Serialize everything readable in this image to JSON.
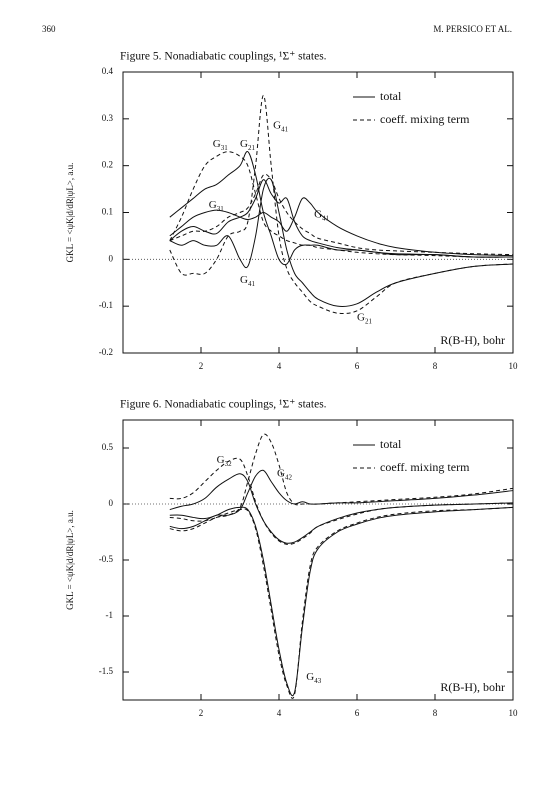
{
  "header": {
    "page": "360",
    "authors": "M. PERSICO ET AL."
  },
  "chart_data": [
    {
      "type": "line",
      "title": "Figure 5. Nonadiabatic couplings, ¹Σ⁺ states.",
      "xlabel": "R(B-H), bohr",
      "ylabel": "GKL = <ψK|d/dR|ψL>, a.u.",
      "xlim": [
        0,
        10
      ],
      "xticks": [
        2,
        4,
        6,
        8,
        10
      ],
      "ylim": [
        -0.2,
        0.4
      ],
      "yticks": [
        0.4,
        0.3,
        0.2,
        0.1,
        0,
        -0.1,
        -0.2
      ],
      "zero_line": true,
      "legend_position": "upper right",
      "color": "#111111",
      "legend": [
        {
          "name": "total",
          "style": "solid"
        },
        {
          "name": "coeff. mixing term",
          "style": "dashed"
        }
      ],
      "x": [
        1.2,
        1.5,
        1.8,
        2.1,
        2.4,
        2.7,
        3.0,
        3.2,
        3.4,
        3.6,
        3.8,
        4.0,
        4.2,
        4.4,
        4.6,
        4.8,
        5.0,
        5.5,
        6.0,
        6.5,
        7,
        8,
        9,
        10
      ],
      "series": [
        {
          "style": "solid",
          "values": [
            0.09,
            0.11,
            0.13,
            0.15,
            0.16,
            0.18,
            0.2,
            0.23,
            0.18,
            0.1,
            0.05,
            0.0,
            -0.01,
            0.02,
            0.03,
            0.03,
            0.03,
            0.02,
            0.02,
            0.015,
            0.01,
            0.01,
            0.005,
            0.005
          ]
        },
        {
          "style": "solid",
          "values": [
            0.05,
            0.07,
            0.09,
            0.1,
            0.105,
            0.1,
            0.09,
            0.085,
            0.09,
            0.1,
            0.09,
            0.08,
            0.06,
            0.09,
            0.13,
            0.12,
            0.1,
            0.07,
            0.05,
            0.035,
            0.025,
            0.015,
            0.01,
            0.008
          ]
        },
        {
          "style": "solid",
          "values": [
            0.04,
            0.03,
            0.04,
            0.03,
            0.03,
            0.05,
            0.0,
            -0.015,
            0.05,
            0.15,
            0.17,
            0.1,
            0.02,
            -0.03,
            -0.05,
            -0.07,
            -0.085,
            -0.1,
            -0.095,
            -0.07,
            -0.05,
            -0.03,
            -0.015,
            -0.01
          ]
        },
        {
          "style": "solid",
          "values": [
            0.04,
            0.06,
            0.07,
            0.06,
            0.055,
            0.08,
            0.09,
            0.1,
            0.13,
            0.17,
            0.14,
            0.12,
            0.13,
            0.08,
            0.05,
            0.04,
            0.035,
            0.025,
            0.02,
            0.015,
            0.012,
            0.01,
            0.005,
            0.005
          ]
        },
        {
          "style": "dashed",
          "values": [
            0.04,
            0.09,
            0.15,
            0.2,
            0.22,
            0.23,
            0.22,
            0.2,
            0.14,
            0.08,
            0.06,
            0.05,
            0.04,
            0.035,
            0.03,
            0.03,
            0.025,
            0.02,
            0.015,
            0.012,
            0.01,
            0.008,
            0.005,
            0.005
          ]
        },
        {
          "style": "dashed",
          "values": [
            0.02,
            -0.03,
            -0.03,
            -0.03,
            0.0,
            0.05,
            0.06,
            0.08,
            0.2,
            0.35,
            0.2,
            0.05,
            -0.02,
            -0.05,
            -0.07,
            -0.09,
            -0.1,
            -0.115,
            -0.11,
            -0.08,
            -0.05,
            -0.03,
            -0.015,
            -0.01
          ]
        },
        {
          "style": "dashed",
          "values": [
            0.04,
            0.05,
            0.06,
            0.06,
            0.07,
            0.09,
            0.1,
            0.11,
            0.14,
            0.18,
            0.17,
            0.13,
            0.1,
            0.08,
            0.065,
            0.055,
            0.045,
            0.035,
            0.025,
            0.02,
            0.018,
            0.015,
            0.012,
            0.01
          ]
        }
      ],
      "annotations": [
        {
          "text": "G",
          "sub": "31",
          "x": 2.3,
          "y": 0.245
        },
        {
          "text": "G",
          "sub": "21",
          "x": 3.0,
          "y": 0.245
        },
        {
          "text": "G",
          "sub": "41",
          "x": 3.85,
          "y": 0.285
        },
        {
          "text": "G",
          "sub": "31",
          "x": 2.2,
          "y": 0.115
        },
        {
          "text": "G",
          "sub": "41",
          "x": 4.9,
          "y": 0.095
        },
        {
          "text": "G",
          "sub": "41",
          "x": 3.0,
          "y": -0.045
        },
        {
          "text": "G",
          "sub": "21",
          "x": 6.0,
          "y": -0.125
        }
      ]
    },
    {
      "type": "line",
      "title": "Figure 6. Nonadiabatic couplings, ¹Σ⁺ states.",
      "xlabel": "R(B-H), bohr",
      "ylabel": "GKL = <ψK|d/dR|ψL>, a.u.",
      "xlim": [
        0,
        10
      ],
      "xticks": [
        2,
        4,
        6,
        8,
        10
      ],
      "ylim": [
        -1.75,
        0.75
      ],
      "yticks": [
        0.5,
        0,
        -0.5,
        -1,
        -1.5
      ],
      "zero_line": true,
      "legend_position": "upper right",
      "color": "#111111",
      "legend": [
        {
          "name": "total",
          "style": "solid"
        },
        {
          "name": "coeff. mixing term",
          "style": "dashed"
        }
      ],
      "x": [
        1.2,
        1.5,
        1.8,
        2.1,
        2.4,
        2.7,
        3.0,
        3.2,
        3.4,
        3.6,
        3.8,
        4.0,
        4.2,
        4.4,
        4.6,
        4.8,
        5.0,
        5.5,
        6.0,
        6.5,
        7,
        8,
        9,
        10
      ],
      "series": [
        {
          "style": "solid",
          "values": [
            -0.1,
            -0.1,
            -0.12,
            -0.13,
            -0.1,
            -0.05,
            -0.03,
            -0.05,
            -0.2,
            -0.5,
            -0.9,
            -1.3,
            -1.6,
            -1.68,
            -1.1,
            -0.6,
            -0.4,
            -0.25,
            -0.18,
            -0.13,
            -0.1,
            -0.07,
            -0.05,
            -0.03
          ]
        },
        {
          "style": "dashed",
          "values": [
            -0.12,
            -0.13,
            -0.15,
            -0.15,
            -0.12,
            -0.08,
            -0.05,
            -0.06,
            -0.22,
            -0.55,
            -0.95,
            -1.35,
            -1.62,
            -1.7,
            -1.05,
            -0.55,
            -0.38,
            -0.24,
            -0.17,
            -0.12,
            -0.09,
            -0.06,
            -0.05,
            -0.03
          ]
        },
        {
          "style": "solid",
          "values": [
            -0.05,
            -0.02,
            0.0,
            0.05,
            0.15,
            0.22,
            0.27,
            0.2,
            0.0,
            -0.15,
            -0.25,
            -0.32,
            -0.35,
            -0.34,
            -0.3,
            -0.25,
            -0.2,
            -0.13,
            -0.08,
            -0.05,
            -0.03,
            -0.01,
            0.0,
            0.01
          ]
        },
        {
          "style": "dashed",
          "values": [
            0.05,
            0.05,
            0.1,
            0.2,
            0.3,
            0.38,
            0.4,
            0.25,
            0.02,
            -0.15,
            -0.26,
            -0.33,
            -0.36,
            -0.35,
            -0.31,
            -0.26,
            -0.2,
            -0.14,
            -0.09,
            -0.05,
            -0.03,
            -0.01,
            0.0,
            0.01
          ]
        },
        {
          "style": "solid",
          "values": [
            -0.2,
            -0.22,
            -0.2,
            -0.15,
            -0.1,
            -0.1,
            -0.05,
            0.1,
            0.25,
            0.3,
            0.2,
            0.1,
            0.03,
            0.0,
            0.02,
            0.0,
            0.0,
            0.01,
            0.01,
            0.02,
            0.03,
            0.05,
            0.08,
            0.12
          ]
        },
        {
          "style": "dashed",
          "values": [
            -0.22,
            -0.24,
            -0.22,
            -0.17,
            -0.12,
            -0.1,
            -0.03,
            0.2,
            0.45,
            0.62,
            0.55,
            0.35,
            0.1,
            0.0,
            0.0,
            0.0,
            0.0,
            0.01,
            0.02,
            0.03,
            0.04,
            0.06,
            0.09,
            0.14
          ]
        }
      ],
      "annotations": [
        {
          "text": "G",
          "sub": "32",
          "x": 2.4,
          "y": 0.39
        },
        {
          "text": "G",
          "sub": "42",
          "x": 3.95,
          "y": 0.27
        },
        {
          "text": "G",
          "sub": "43",
          "x": 4.7,
          "y": -1.55
        }
      ]
    }
  ]
}
